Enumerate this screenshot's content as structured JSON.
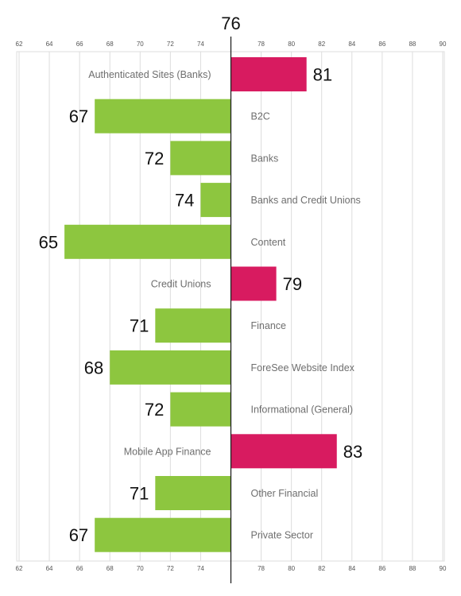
{
  "chart_data": {
    "type": "bar",
    "orientation": "horizontal-diverging",
    "reference_value": 76,
    "reference_label": "76",
    "xlim": [
      62,
      90
    ],
    "x_ticks": [
      62,
      64,
      66,
      68,
      70,
      72,
      74,
      76,
      78,
      80,
      82,
      84,
      86,
      88,
      90
    ],
    "x_tick_labels": [
      "62",
      "64",
      "66",
      "68",
      "70",
      "72",
      "74",
      "",
      "78",
      "80",
      "82",
      "84",
      "86",
      "88",
      "90"
    ],
    "grid": true,
    "colors": {
      "below": "#8dc63f",
      "above": "#d81b60",
      "grid": "#dddddd",
      "reference_line": "#222222"
    },
    "categories": [
      "Authenticated Sites (Banks)",
      "B2C",
      "Banks",
      "Banks and Credit Unions",
      "Content",
      "Credit Unions",
      "Finance",
      "ForeSee Website Index",
      "Informational (General)",
      "Mobile App Finance",
      "Other Financial",
      "Private Sector"
    ],
    "values": [
      81,
      67,
      72,
      74,
      65,
      79,
      71,
      68,
      72,
      83,
      71,
      67
    ],
    "value_labels": [
      "81",
      "67",
      "72",
      "74",
      "65",
      "79",
      "71",
      "68",
      "72",
      "83",
      "71",
      "67"
    ]
  }
}
